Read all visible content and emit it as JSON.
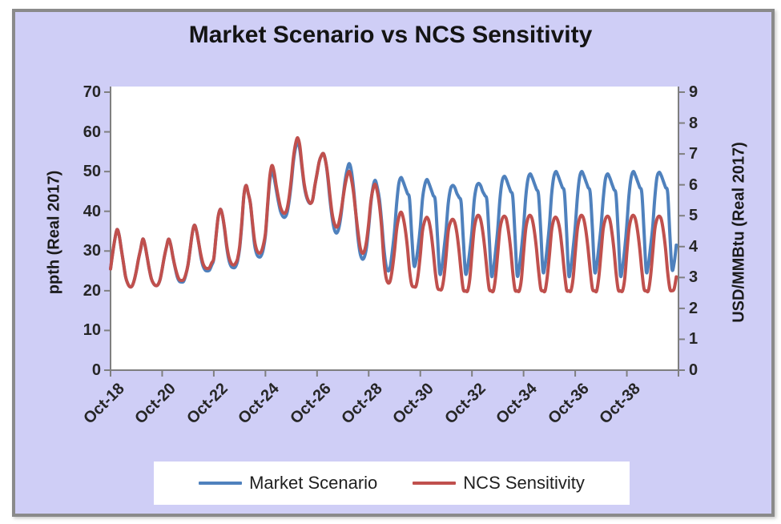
{
  "chart_data": {
    "type": "line",
    "title": "Market Scenario vs NCS Sensitivity",
    "x_start": "Oct-2018",
    "x_step": "1 month",
    "x_points": 264,
    "x_tick_labels": [
      "Oct-18",
      "Oct-20",
      "Oct-22",
      "Oct-24",
      "Oct-26",
      "Oct-28",
      "Oct-30",
      "Oct-32",
      "Oct-34",
      "Oct-36",
      "Oct-38"
    ],
    "y_left": {
      "title": "ppth (Real 2017)",
      "range": [
        0,
        70
      ],
      "ticks": [
        0,
        10,
        20,
        30,
        40,
        50,
        60,
        70
      ]
    },
    "y_right": {
      "title": "USD/MMBtu (Real 2017)",
      "range": [
        0,
        9
      ],
      "ticks": [
        0,
        1,
        2,
        3,
        4,
        5,
        6,
        7,
        8,
        9
      ]
    },
    "grid": false,
    "legend_position": "bottom",
    "series": [
      {
        "name": "Market Scenario",
        "color": "#4F81BD",
        "axis": "left",
        "values": [
          25.5,
          29.5,
          33,
          35.4,
          34,
          30.5,
          27,
          23.5,
          21.8,
          21,
          21.2,
          22.6,
          25,
          28,
          30.5,
          33,
          31.5,
          28.5,
          25.5,
          23,
          21.8,
          21.3,
          21.5,
          22.8,
          25.5,
          28.5,
          31,
          33,
          31.5,
          28.5,
          25.8,
          23.5,
          22.4,
          22.2,
          22.4,
          24,
          26.5,
          30.5,
          34.5,
          36.5,
          35,
          32,
          28.5,
          26.2,
          25.2,
          25,
          25.2,
          26.4,
          28,
          33.5,
          38.5,
          40.5,
          39,
          35.5,
          31,
          27.8,
          26.2,
          25.8,
          26,
          27.4,
          30.5,
          36.5,
          44,
          46.5,
          44.5,
          42,
          36.5,
          31.5,
          29.2,
          28.5,
          28.8,
          30.5,
          34,
          41,
          47.5,
          50,
          48.5,
          45.5,
          42.5,
          40,
          38.8,
          38.5,
          39.5,
          42.5,
          47,
          52.5,
          56,
          57.5,
          55.5,
          51,
          46.5,
          43.8,
          42.4,
          42,
          43,
          46.5,
          49.5,
          52.5,
          54,
          54.5,
          52.5,
          48.5,
          43,
          38.5,
          35.5,
          34.5,
          35.5,
          38.5,
          43,
          47.5,
          50.5,
          52,
          50,
          45.5,
          39.5,
          33.5,
          29.5,
          28,
          28.5,
          31,
          36,
          42,
          46,
          47.8,
          46,
          43,
          37.5,
          31,
          26.5,
          25,
          26,
          30,
          35,
          42,
          47,
          48.5,
          47.5,
          46,
          44.5,
          43,
          34,
          26.5,
          27.5,
          31,
          36,
          43,
          46.5,
          48,
          47,
          45.5,
          44,
          42.5,
          33.5,
          24.5,
          26,
          30.5,
          35.5,
          42,
          45.5,
          46.5,
          46,
          44.5,
          43.5,
          42,
          33,
          24.5,
          26,
          30,
          35,
          42.5,
          46,
          47,
          46.5,
          45,
          44,
          42.5,
          33.5,
          24,
          25.5,
          30,
          35.5,
          43,
          47.5,
          48.8,
          48,
          46.5,
          45,
          43.5,
          34,
          24,
          26,
          30.5,
          36,
          43.5,
          48,
          49.4,
          48.5,
          47,
          45.5,
          44,
          35,
          25,
          26.5,
          31,
          36.5,
          44,
          48.5,
          50,
          49,
          47.5,
          46,
          44.5,
          35,
          24,
          26,
          30.5,
          36,
          43.5,
          48.5,
          50,
          49,
          47.5,
          46,
          44.5,
          35.5,
          25,
          26.5,
          31,
          36,
          43,
          48,
          49.4,
          48.5,
          47,
          45.5,
          44,
          34.5,
          24,
          26,
          30.5,
          36.5,
          44,
          48.5,
          50,
          49,
          47.5,
          46,
          44.5,
          35,
          25,
          26.5,
          31,
          36,
          43.5,
          48.5,
          49.8,
          49,
          47.5,
          46,
          44.5,
          34,
          25.5,
          27,
          31.5
        ]
      },
      {
        "name": "NCS Sensitivity",
        "color": "#C0504D",
        "axis": "left",
        "values": [
          25.5,
          29.5,
          33,
          35.4,
          34,
          30.5,
          27,
          23.5,
          21.8,
          21,
          21.2,
          22.6,
          25,
          28,
          30.5,
          33,
          31.5,
          28.5,
          25.5,
          23,
          21.8,
          21.3,
          21.5,
          22.8,
          25.5,
          28.5,
          31,
          33,
          31.5,
          28.5,
          26,
          24,
          22.8,
          22.6,
          22.8,
          24.2,
          26.5,
          30.5,
          34.5,
          36.5,
          35,
          32,
          29,
          26.8,
          25.8,
          25.6,
          25.8,
          27,
          28.2,
          33.5,
          38.5,
          40.5,
          39,
          35.8,
          31.5,
          28.5,
          27,
          26.5,
          26.8,
          28,
          31,
          37,
          44,
          46.5,
          44.5,
          42,
          37,
          32.5,
          30.2,
          29.5,
          29.8,
          31.5,
          34.5,
          41.5,
          48.5,
          51.5,
          50,
          46.5,
          43.5,
          41,
          39.8,
          39.5,
          40.5,
          43.5,
          48,
          53.5,
          57,
          58.5,
          56.5,
          51.5,
          47,
          44.2,
          42.6,
          42,
          43,
          46.5,
          49.5,
          52.5,
          54,
          54.5,
          52.5,
          49,
          44,
          39.5,
          37,
          36,
          36.8,
          39.5,
          43,
          46.5,
          49,
          50,
          48,
          44.5,
          39.5,
          35,
          31,
          29.5,
          30,
          32.5,
          37,
          42.5,
          45.5,
          46.8,
          45,
          41.5,
          36,
          28,
          23.5,
          22,
          22.5,
          25.5,
          30,
          35.5,
          38.5,
          39.8,
          38.5,
          35.5,
          31,
          25,
          21.5,
          21,
          21.2,
          24,
          29,
          35,
          37.5,
          38.5,
          37.5,
          34.5,
          30,
          24.5,
          20.8,
          20.3,
          20.5,
          23.5,
          29,
          35,
          37.2,
          38,
          37.2,
          34.5,
          30,
          24.5,
          20.3,
          20,
          20,
          23,
          29.5,
          35.5,
          38.2,
          39,
          38,
          35,
          30.5,
          25,
          20.5,
          20,
          20,
          23.5,
          29.5,
          35.5,
          38,
          38.8,
          38,
          35,
          30.5,
          24.5,
          20.3,
          20,
          20,
          23,
          29.5,
          35.5,
          38.2,
          39,
          38,
          35,
          30.5,
          25,
          20.5,
          20,
          20,
          23.5,
          29,
          35,
          37.8,
          38.5,
          37.5,
          34.8,
          30,
          24.5,
          20.3,
          20,
          20,
          23,
          29.5,
          35.5,
          38.2,
          39,
          38,
          35,
          30.5,
          25,
          20.5,
          20,
          20,
          23.5,
          29.5,
          35.5,
          38,
          38.8,
          38,
          35,
          30.5,
          24.5,
          20.3,
          20,
          20,
          23,
          29.5,
          35.5,
          38.2,
          39,
          38,
          35,
          30.5,
          25,
          20.5,
          20,
          20,
          23.5,
          29.5,
          35.5,
          38,
          38.8,
          38,
          35,
          30.5,
          24.5,
          20.5,
          20,
          20.5,
          23.5
        ]
      }
    ]
  },
  "legend": {
    "items": [
      {
        "label": "Market Scenario",
        "color": "#4F81BD"
      },
      {
        "label": "NCS Sensitivity",
        "color": "#C0504D"
      }
    ]
  },
  "colors": {
    "chart_background": "#CFCEF6",
    "plot_background": "#FFFFFF",
    "frame_border": "#8A8A8A",
    "axis_line": "#7F7F7F",
    "tick_text": "#262626",
    "title_text": "#141414",
    "series_blue": "#4F81BD",
    "series_red": "#C0504D"
  }
}
